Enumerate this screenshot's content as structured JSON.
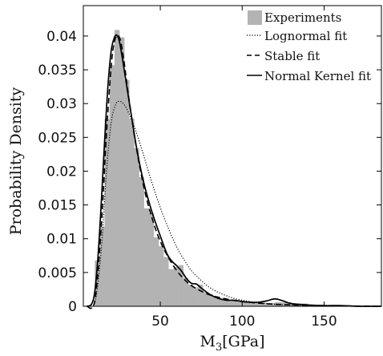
{
  "chart_data": {
    "type": "histogram",
    "xlabel": "M",
    "xlabel_sub": "3",
    "xlabel_unit": "[GPa]",
    "ylabel": "Probability Density",
    "xlim": [
      3,
      185
    ],
    "ylim": [
      0,
      0.0445
    ],
    "xticks": [
      50,
      100,
      150
    ],
    "yticks": [
      {
        "value": 0,
        "label": "0"
      },
      {
        "value": 0.005,
        "label": "0.005"
      },
      {
        "value": 0.01,
        "label": "0.01"
      },
      {
        "value": 0.015,
        "label": "0.015"
      },
      {
        "value": 0.02,
        "label": "0.02"
      },
      {
        "value": 0.025,
        "label": "0.025"
      },
      {
        "value": 0.03,
        "label": "0.03"
      },
      {
        "value": 0.035,
        "label": "0.035"
      },
      {
        "value": 0.04,
        "label": "0.04"
      }
    ],
    "grid": false,
    "legend_position": "top-right",
    "histogram": {
      "name": "Experiments",
      "color": "#b3b3b3",
      "bin_edges": [
        10,
        13,
        16,
        19,
        22,
        25,
        28,
        31,
        34,
        37,
        40,
        43,
        46,
        49,
        52,
        55,
        58,
        61,
        64,
        67,
        70,
        73,
        76,
        79,
        82,
        85,
        88,
        91,
        94,
        97,
        100,
        110,
        120,
        130,
        140,
        150,
        160,
        170,
        185
      ],
      "densities": [
        0.0068,
        0.0118,
        0.0277,
        0.0357,
        0.0409,
        0.0398,
        0.0335,
        0.0278,
        0.0234,
        0.0191,
        0.0145,
        0.0138,
        0.0102,
        0.0089,
        0.0073,
        0.0055,
        0.0058,
        0.0061,
        0.0042,
        0.0032,
        0.0028,
        0.0032,
        0.0021,
        0.0018,
        0.0015,
        0.0012,
        0.0011,
        0.0009,
        0.0008,
        0.0007,
        0.0006,
        0.0005,
        0.0006,
        0.0004,
        0.0002,
        0.0002,
        0.0001,
        0.0001
      ]
    },
    "series": [
      {
        "name": "Lognormal fit",
        "style": "dotted",
        "x": [
          5,
          10,
          14,
          17,
          20,
          23,
          25,
          27,
          30,
          35,
          40,
          45,
          50,
          55,
          60,
          65,
          70,
          80,
          90,
          100,
          120,
          150,
          185
        ],
        "y": [
          0.0,
          0.0005,
          0.0085,
          0.0195,
          0.0272,
          0.03,
          0.0303,
          0.0301,
          0.029,
          0.026,
          0.0222,
          0.0182,
          0.0146,
          0.0115,
          0.0088,
          0.0067,
          0.005,
          0.0028,
          0.0016,
          0.0009,
          0.0003,
          0.0001,
          0.0
        ]
      },
      {
        "name": "Stable fit",
        "style": "dashed",
        "x": [
          5,
          10,
          14,
          17,
          20,
          22,
          24,
          25,
          26,
          28,
          30,
          35,
          40,
          45,
          50,
          55,
          60,
          65,
          70,
          80,
          90,
          100,
          120,
          150,
          185
        ],
        "y": [
          0.0,
          0.0008,
          0.012,
          0.025,
          0.0355,
          0.0392,
          0.0401,
          0.0398,
          0.039,
          0.036,
          0.0322,
          0.024,
          0.0176,
          0.013,
          0.0096,
          0.0072,
          0.0053,
          0.0039,
          0.0029,
          0.0017,
          0.0011,
          0.0007,
          0.0003,
          0.0001,
          0.0
        ]
      },
      {
        "name": "Normal Kernel fit",
        "style": "solid",
        "x": [
          5,
          8,
          10,
          12,
          14,
          16,
          18,
          20,
          22,
          23.5,
          25,
          27,
          30,
          33,
          36,
          40,
          45,
          50,
          54,
          57,
          60,
          63,
          66,
          69,
          72,
          75,
          80,
          85,
          90,
          95,
          100,
          105,
          110,
          115,
          120,
          125,
          130,
          140,
          150,
          160,
          170,
          185
        ],
        "y": [
          0.0,
          0.0003,
          0.0022,
          0.0075,
          0.0155,
          0.0245,
          0.0325,
          0.0378,
          0.0398,
          0.0401,
          0.0392,
          0.0365,
          0.0318,
          0.0272,
          0.0228,
          0.0182,
          0.0139,
          0.0104,
          0.0078,
          0.0067,
          0.006,
          0.0052,
          0.0041,
          0.0034,
          0.0033,
          0.0027,
          0.0018,
          0.0012,
          0.0009,
          0.0009,
          0.0007,
          0.0006,
          0.0006,
          0.0008,
          0.0011,
          0.0008,
          0.0004,
          0.0002,
          0.0001,
          0.0001,
          0.0,
          0.0
        ]
      }
    ]
  }
}
